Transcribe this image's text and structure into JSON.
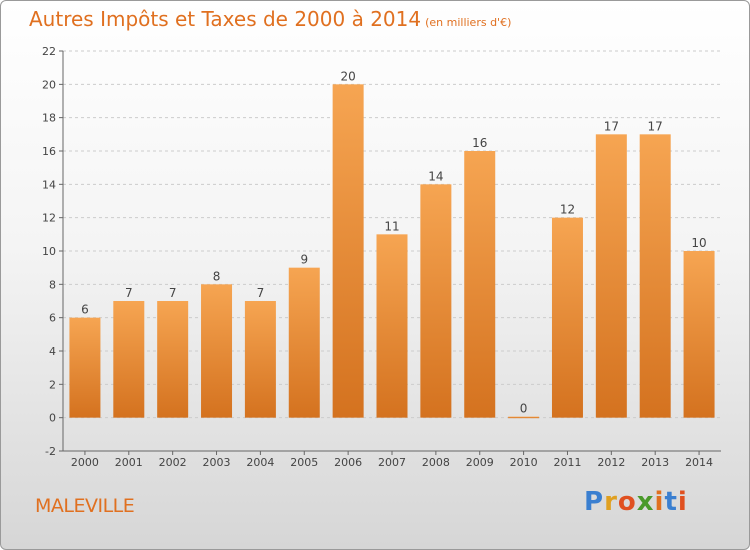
{
  "title": "Autres Impôts et Taxes de 2000 à 2014",
  "subtitle": "(en milliers d'€)",
  "commune": "MALEVILLE",
  "brand": {
    "text": "Proxiti",
    "letter_colors": [
      "#3a7fd0",
      "#e0a020",
      "#e05020",
      "#4a9a2a",
      "#e07020",
      "#3a7fd0",
      "#e05020"
    ]
  },
  "colors": {
    "bar_top": "#f6a552",
    "bar_bottom": "#d4721f",
    "title": "#e07020",
    "axis": "#666666",
    "grid": "#cccccc"
  },
  "chart_data": {
    "type": "bar",
    "categories": [
      "2000",
      "2001",
      "2002",
      "2003",
      "2004",
      "2005",
      "2006",
      "2007",
      "2008",
      "2009",
      "2010",
      "2011",
      "2012",
      "2013",
      "2014"
    ],
    "values": [
      6,
      7,
      7,
      8,
      7,
      9,
      20,
      11,
      14,
      16,
      0,
      12,
      17,
      17,
      10
    ],
    "data_labels": [
      "6",
      "7",
      "7",
      "8",
      "7",
      "9",
      "20",
      "11",
      "14",
      "16",
      "0",
      "12",
      "17",
      "17",
      "10"
    ],
    "y_ticks": [
      -2,
      0,
      2,
      4,
      6,
      8,
      10,
      12,
      14,
      16,
      18,
      20,
      22
    ],
    "ylim": [
      -2,
      22
    ],
    "grid": "dashed-horizontal",
    "legend": "none"
  }
}
